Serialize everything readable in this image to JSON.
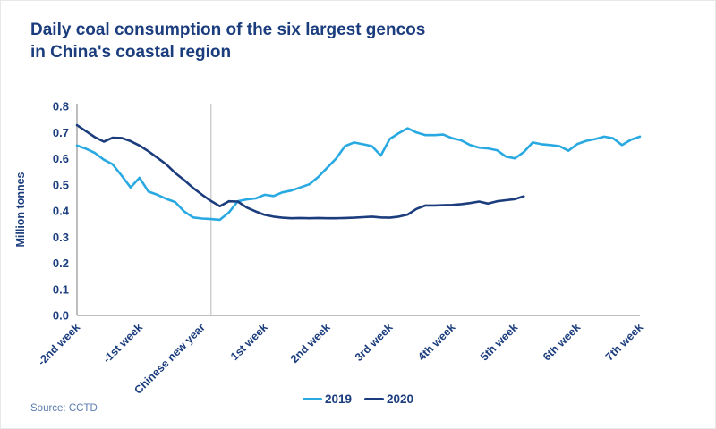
{
  "title": {
    "line1": "Daily coal consumption of the six largest gencos",
    "line2": "in China's coastal region"
  },
  "source": "Source: CCTD",
  "legend": [
    {
      "label": "2019",
      "color": "#29a9e1"
    },
    {
      "label": "2020",
      "color": "#1b3d7d"
    }
  ],
  "colors": {
    "title_text": "#1b3d7d",
    "axis_line": "#a8a8a8",
    "tick_label": "#1b3d7d",
    "reference_line": "#c9c9c9",
    "source_text": "#5b7cb0",
    "background": "#ffffff"
  },
  "chart_data": {
    "type": "line",
    "title": "Daily coal consumption of the six largest gencos in China's coastal region",
    "xlabel": "",
    "ylabel": "Million tonnes",
    "ylim": [
      0,
      0.8
    ],
    "yticks": [
      "0.0",
      "0.1",
      "0.2",
      "0.3",
      "0.4",
      "0.5",
      "0.6",
      "0.7",
      "0.8"
    ],
    "grid": false,
    "legend_position": "bottom-center",
    "categories": [
      "-2nd week",
      "-1st week",
      "Chinese new year",
      "1st week",
      "2nd week",
      "3rd week",
      "4th week",
      "5th week",
      "6th week",
      "7th week"
    ],
    "days_per_category": 7,
    "days_total": 64,
    "reference_line": {
      "day": 15,
      "marks": "Chinese new year"
    },
    "series": [
      {
        "name": "2019",
        "color": "#29a9e1",
        "values": [
          0.65,
          0.638,
          0.622,
          0.596,
          0.578,
          0.535,
          0.49,
          0.527,
          0.474,
          0.462,
          0.446,
          0.434,
          0.398,
          0.375,
          0.371,
          0.369,
          0.366,
          0.394,
          0.437,
          0.444,
          0.448,
          0.462,
          0.457,
          0.471,
          0.478,
          0.49,
          0.502,
          0.53,
          0.565,
          0.6,
          0.648,
          0.662,
          0.655,
          0.648,
          0.612,
          0.675,
          0.697,
          0.716,
          0.7,
          0.69,
          0.69,
          0.692,
          0.678,
          0.67,
          0.652,
          0.642,
          0.639,
          0.632,
          0.608,
          0.601,
          0.625,
          0.662,
          0.655,
          0.652,
          0.648,
          0.63,
          0.656,
          0.668,
          0.675,
          0.684,
          0.678,
          0.652,
          0.672,
          0.684
        ]
      },
      {
        "name": "2020",
        "color": "#1b3d7d",
        "values": [
          0.728,
          0.705,
          0.682,
          0.665,
          0.68,
          0.679,
          0.667,
          0.65,
          0.628,
          0.603,
          0.578,
          0.545,
          0.518,
          0.488,
          0.462,
          0.438,
          0.418,
          0.437,
          0.436,
          0.413,
          0.398,
          0.385,
          0.378,
          0.374,
          0.372,
          0.373,
          0.372,
          0.373,
          0.372,
          0.372,
          0.373,
          0.374,
          0.376,
          0.378,
          0.375,
          0.374,
          0.378,
          0.386,
          0.408,
          0.421,
          0.421,
          0.422,
          0.423,
          0.426,
          0.43,
          0.436,
          0.428,
          0.437,
          0.441,
          0.445,
          0.456
        ]
      }
    ]
  }
}
